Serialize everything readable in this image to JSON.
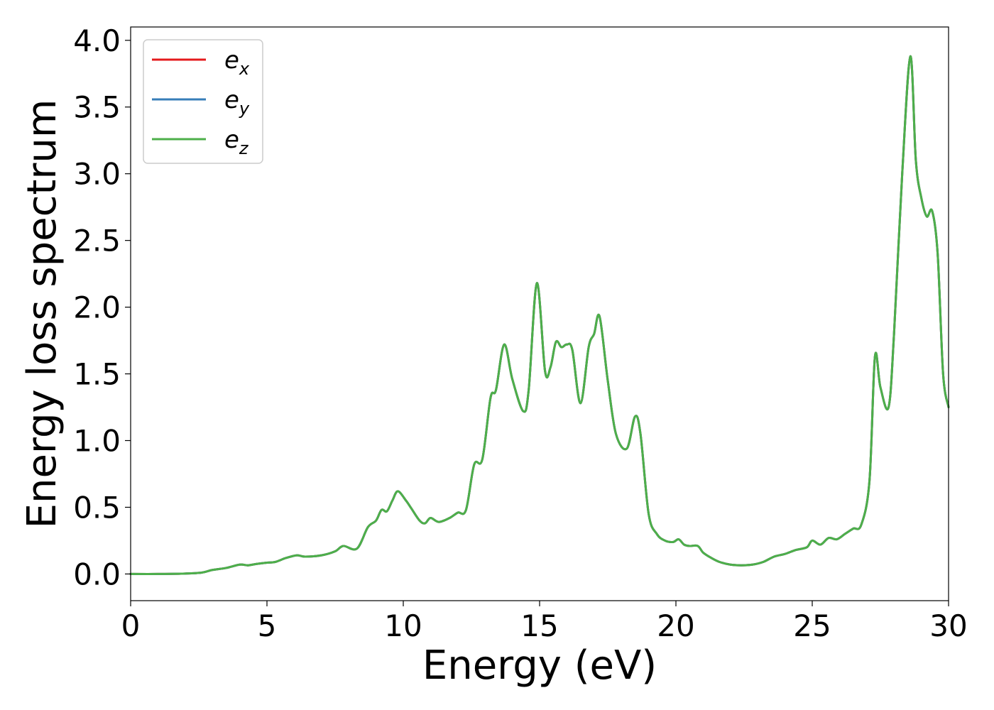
{
  "chart_data": {
    "type": "line",
    "xlabel": "Energy (eV)",
    "ylabel": "Energy loss spectrum",
    "xlim": [
      0,
      30
    ],
    "ylim": [
      -0.2,
      4.1
    ],
    "xticks": [
      0,
      5,
      10,
      15,
      20,
      25,
      30
    ],
    "xtick_labels": [
      "0",
      "5",
      "10",
      "15",
      "20",
      "25",
      "30"
    ],
    "yticks": [
      0.0,
      0.5,
      1.0,
      1.5,
      2.0,
      2.5,
      3.0,
      3.5,
      4.0
    ],
    "ytick_labels": [
      "0.0",
      "0.5",
      "1.0",
      "1.5",
      "2.0",
      "2.5",
      "3.0",
      "3.5",
      "4.0"
    ],
    "grid": false,
    "legend_position": "top-left",
    "x": [
      0,
      1,
      2,
      2.6,
      3,
      3.5,
      4,
      4.3,
      4.6,
      5,
      5.3,
      5.7,
      6.1,
      6.4,
      7,
      7.5,
      7.8,
      8.3,
      8.7,
      9,
      9.2,
      9.4,
      9.6,
      9.8,
      10.1,
      10.3,
      10.6,
      10.8,
      11.0,
      11.3,
      11.7,
      12.0,
      12.3,
      12.6,
      12.9,
      13.2,
      13.4,
      13.7,
      14.0,
      14.4,
      14.6,
      14.9,
      15.2,
      15.4,
      15.6,
      15.8,
      16.0,
      16.2,
      16.5,
      16.8,
      17.0,
      17.2,
      17.5,
      17.8,
      18.2,
      18.5,
      18.7,
      19.0,
      19.3,
      19.6,
      19.9,
      20.1,
      20.3,
      20.5,
      20.8,
      21.0,
      21.3,
      21.6,
      22.0,
      22.4,
      22.8,
      23.2,
      23.6,
      24.0,
      24.4,
      24.8,
      25.0,
      25.3,
      25.6,
      25.9,
      26.2,
      26.5,
      26.8,
      27.1,
      27.3,
      27.5,
      27.8,
      28.0,
      28.3,
      28.6,
      28.8,
      29.0,
      29.2,
      29.4,
      29.6,
      29.8,
      30.0
    ],
    "series": [
      {
        "name": "e_x",
        "color": "#e41a1c",
        "values": [
          0,
          0,
          0.003,
          0.01,
          0.03,
          0.045,
          0.07,
          0.065,
          0.075,
          0.085,
          0.09,
          0.12,
          0.14,
          0.13,
          0.14,
          0.17,
          0.21,
          0.19,
          0.35,
          0.4,
          0.48,
          0.47,
          0.55,
          0.62,
          0.55,
          0.49,
          0.4,
          0.38,
          0.42,
          0.39,
          0.42,
          0.46,
          0.48,
          0.82,
          0.86,
          1.32,
          1.38,
          1.72,
          1.46,
          1.22,
          1.38,
          2.18,
          1.52,
          1.55,
          1.74,
          1.7,
          1.72,
          1.68,
          1.28,
          1.7,
          1.8,
          1.93,
          1.45,
          1.05,
          0.94,
          1.18,
          1.05,
          0.45,
          0.3,
          0.25,
          0.24,
          0.26,
          0.22,
          0.21,
          0.21,
          0.16,
          0.12,
          0.09,
          0.07,
          0.065,
          0.07,
          0.09,
          0.13,
          0.15,
          0.18,
          0.2,
          0.25,
          0.22,
          0.27,
          0.26,
          0.3,
          0.34,
          0.37,
          0.7,
          1.63,
          1.4,
          1.25,
          1.8,
          3.0,
          3.88,
          3.1,
          2.82,
          2.68,
          2.72,
          2.4,
          1.5,
          1.25
        ]
      },
      {
        "name": "e_y",
        "color": "#377eb8",
        "values": [
          0,
          0,
          0.003,
          0.01,
          0.03,
          0.045,
          0.07,
          0.065,
          0.075,
          0.085,
          0.09,
          0.12,
          0.14,
          0.13,
          0.14,
          0.17,
          0.21,
          0.19,
          0.35,
          0.4,
          0.48,
          0.47,
          0.55,
          0.62,
          0.55,
          0.49,
          0.4,
          0.38,
          0.42,
          0.39,
          0.42,
          0.46,
          0.48,
          0.82,
          0.86,
          1.32,
          1.38,
          1.72,
          1.46,
          1.22,
          1.38,
          2.18,
          1.52,
          1.55,
          1.74,
          1.7,
          1.72,
          1.68,
          1.28,
          1.7,
          1.8,
          1.93,
          1.45,
          1.05,
          0.94,
          1.18,
          1.05,
          0.45,
          0.3,
          0.25,
          0.24,
          0.26,
          0.22,
          0.21,
          0.21,
          0.16,
          0.12,
          0.09,
          0.07,
          0.065,
          0.07,
          0.09,
          0.13,
          0.15,
          0.18,
          0.2,
          0.25,
          0.22,
          0.27,
          0.26,
          0.3,
          0.34,
          0.37,
          0.7,
          1.63,
          1.4,
          1.25,
          1.8,
          3.0,
          3.88,
          3.1,
          2.82,
          2.68,
          2.72,
          2.4,
          1.5,
          1.25
        ]
      },
      {
        "name": "e_z",
        "color": "#4daf4a",
        "values": [
          0,
          0,
          0.003,
          0.01,
          0.03,
          0.045,
          0.07,
          0.065,
          0.075,
          0.085,
          0.09,
          0.12,
          0.14,
          0.13,
          0.14,
          0.17,
          0.21,
          0.19,
          0.35,
          0.4,
          0.48,
          0.47,
          0.55,
          0.62,
          0.55,
          0.49,
          0.4,
          0.38,
          0.42,
          0.39,
          0.42,
          0.46,
          0.48,
          0.82,
          0.86,
          1.32,
          1.38,
          1.72,
          1.46,
          1.22,
          1.38,
          2.18,
          1.52,
          1.55,
          1.74,
          1.7,
          1.72,
          1.68,
          1.28,
          1.7,
          1.8,
          1.93,
          1.45,
          1.05,
          0.94,
          1.18,
          1.05,
          0.45,
          0.3,
          0.25,
          0.24,
          0.26,
          0.22,
          0.21,
          0.21,
          0.16,
          0.12,
          0.09,
          0.07,
          0.065,
          0.07,
          0.09,
          0.13,
          0.15,
          0.18,
          0.2,
          0.25,
          0.22,
          0.27,
          0.26,
          0.3,
          0.34,
          0.37,
          0.7,
          1.63,
          1.4,
          1.25,
          1.8,
          3.0,
          3.88,
          3.1,
          2.82,
          2.68,
          2.72,
          2.4,
          1.5,
          1.25
        ]
      }
    ],
    "legend": [
      {
        "base": "e",
        "sub": "x"
      },
      {
        "base": "e",
        "sub": "y"
      },
      {
        "base": "e",
        "sub": "z"
      }
    ]
  }
}
